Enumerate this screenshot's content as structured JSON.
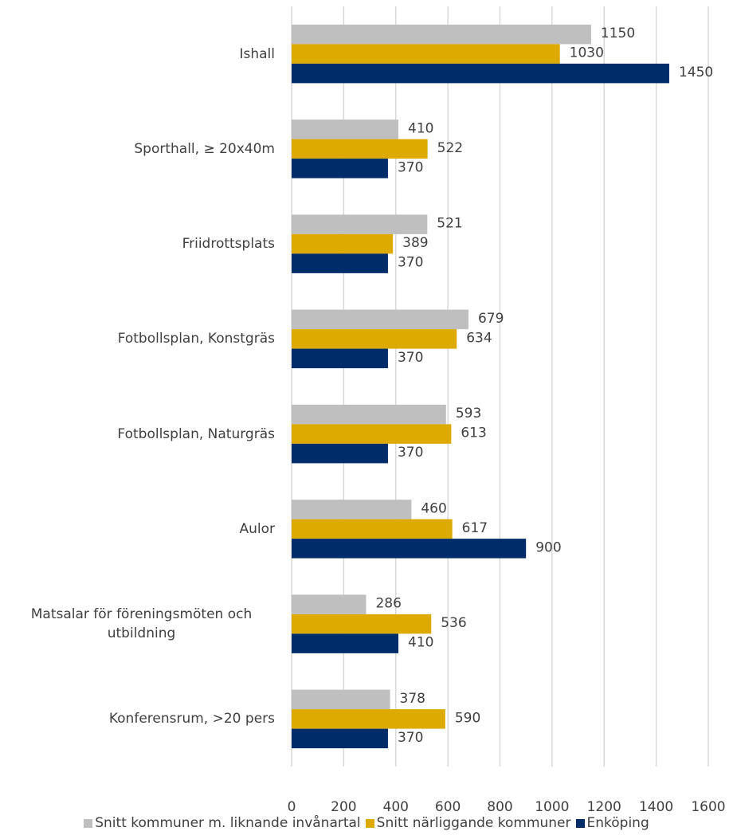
{
  "chart_data": {
    "type": "barh",
    "categories": [
      "Ishall",
      "Sporthall, ≥ 20x40m",
      "Friidrottsplats",
      "Fotbollsplan, Konstgräs",
      "Fotbollsplan, Naturgräs",
      "Aulor",
      "Matsalar för föreningsmöten och utbildning",
      "Konferensrum, >20 pers"
    ],
    "series": [
      {
        "name": "Snitt kommuner m. liknande invånartal",
        "color": "#bfbfbf",
        "values": [
          1150,
          410,
          521,
          679,
          593,
          460,
          286,
          378
        ]
      },
      {
        "name": "Snitt närliggande kommuner",
        "color": "#dcaa00",
        "values": [
          1030,
          522,
          389,
          634,
          613,
          617,
          536,
          590
        ]
      },
      {
        "name": "Enköping",
        "color": "#002c6a",
        "values": [
          1450,
          370,
          370,
          370,
          370,
          900,
          410,
          370
        ]
      }
    ],
    "xlim": [
      0,
      1600
    ],
    "xticks": [
      0,
      200,
      400,
      600,
      800,
      1000,
      1200,
      1400,
      1600
    ],
    "grid": true,
    "legend": "bottom"
  }
}
